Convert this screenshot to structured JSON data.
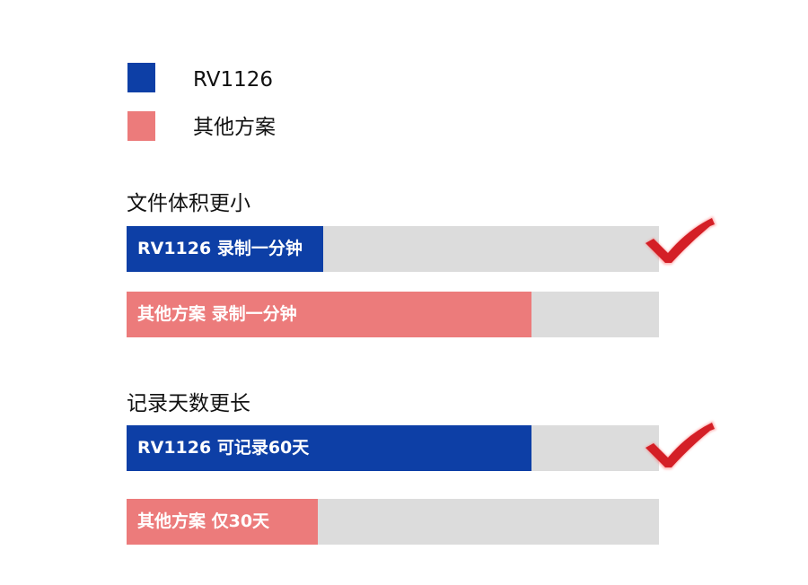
{
  "colors": {
    "rv1126": "#0d3fa6",
    "other": "#ec7b7b",
    "track": "#dcdcdc",
    "check": "#d41f26"
  },
  "chart_data": {
    "type": "bar",
    "orientation": "horizontal",
    "legend": [
      {
        "name": "RV1126",
        "color": "#0d3fa6"
      },
      {
        "name": "其他方案",
        "color": "#ec7b7b"
      }
    ],
    "legend_placement": "top-left",
    "groups": [
      {
        "title": "文件体积更小",
        "winner_icon": "red-checkmark",
        "bars": [
          {
            "series": "RV1126",
            "label": "RV1126 录制一分钟",
            "fraction": 0.37
          },
          {
            "series": "其他方案",
            "label": "其他方案 录制一分钟",
            "fraction": 0.76
          }
        ]
      },
      {
        "title": "记录天数更长",
        "winner_icon": "red-checkmark",
        "bars": [
          {
            "series": "RV1126",
            "label": "RV1126 可记录60天",
            "fraction": 0.76
          },
          {
            "series": "其他方案",
            "label": "其他方案 仅30天",
            "fraction": 0.36
          }
        ]
      }
    ]
  }
}
